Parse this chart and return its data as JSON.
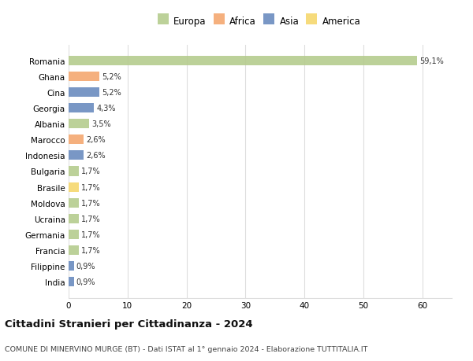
{
  "countries": [
    "Romania",
    "Ghana",
    "Cina",
    "Georgia",
    "Albania",
    "Marocco",
    "Indonesia",
    "Bulgaria",
    "Brasile",
    "Moldova",
    "Ucraina",
    "Germania",
    "Francia",
    "Filippine",
    "India"
  ],
  "values": [
    59.1,
    5.2,
    5.2,
    4.3,
    3.5,
    2.6,
    2.6,
    1.7,
    1.7,
    1.7,
    1.7,
    1.7,
    1.7,
    0.9,
    0.9
  ],
  "labels": [
    "59,1%",
    "5,2%",
    "5,2%",
    "4,3%",
    "3,5%",
    "2,6%",
    "2,6%",
    "1,7%",
    "1,7%",
    "1,7%",
    "1,7%",
    "1,7%",
    "1,7%",
    "0,9%",
    "0,9%"
  ],
  "continent": [
    "Europa",
    "Africa",
    "Asia",
    "Asia",
    "Europa",
    "Africa",
    "Asia",
    "Europa",
    "America",
    "Europa",
    "Europa",
    "Europa",
    "Europa",
    "Asia",
    "Asia"
  ],
  "colors": {
    "Europa": "#b5cc8e",
    "Africa": "#f4a870",
    "Asia": "#6b8cbf",
    "America": "#f5d76e"
  },
  "title": "Cittadini Stranieri per Cittadinanza - 2024",
  "subtitle": "COMUNE DI MINERVINO MURGE (BT) - Dati ISTAT al 1° gennaio 2024 - Elaborazione TUTTITALIA.IT",
  "xlim": [
    0,
    65
  ],
  "xticks": [
    0,
    10,
    20,
    30,
    40,
    50,
    60
  ],
  "background_color": "#ffffff",
  "grid_color": "#dddddd",
  "legend_order": [
    "Europa",
    "Africa",
    "Asia",
    "America"
  ]
}
